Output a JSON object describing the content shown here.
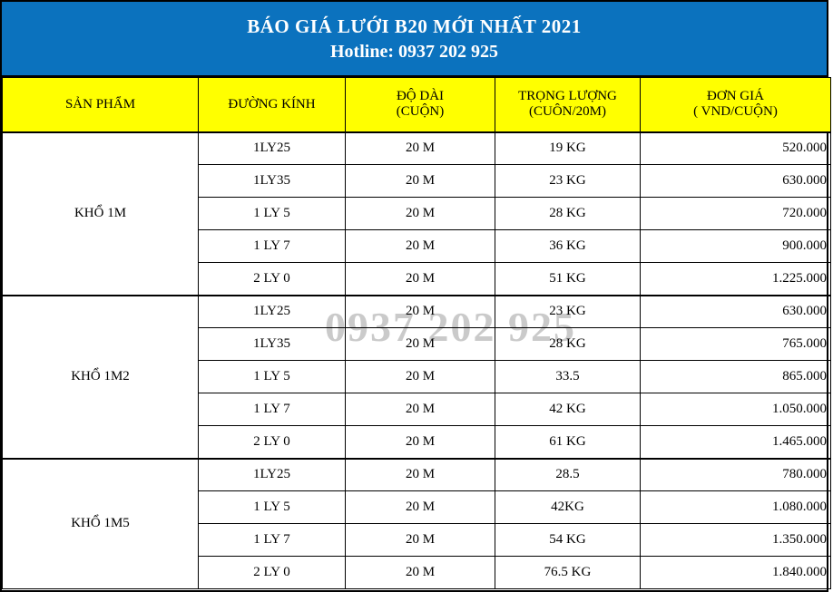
{
  "banner": {
    "title": "BÁO GIÁ LƯỚI B20 MỚI NHẤT 2021",
    "hotline": "Hotline: 0937 202 925"
  },
  "watermark": {
    "text": "0937 202 925"
  },
  "colors": {
    "banner_background": "#0b72be",
    "header_background": "#ffff00",
    "border": "#000000",
    "banner_text": "#ffffff",
    "watermark_text": "#b5b5b5"
  },
  "table": {
    "columns": [
      {
        "label": "SẢN PHẨM",
        "sub": ""
      },
      {
        "label": "ĐƯỜNG KÍNH",
        "sub": ""
      },
      {
        "label": "ĐỘ DÀI",
        "sub": "(CUỘN)"
      },
      {
        "label": "TRỌNG LƯỢNG",
        "sub": "(CUÔN/20M)"
      },
      {
        "label": "ĐƠN GIÁ",
        "sub": "( VND/CUỘN)"
      }
    ],
    "groups": [
      {
        "product": "KHỔ 1M",
        "rows": [
          {
            "diameter": "1LY25",
            "length": "20 M",
            "weight": "19 KG",
            "price": "520.000"
          },
          {
            "diameter": "1LY35",
            "length": "20 M",
            "weight": "23 KG",
            "price": "630.000"
          },
          {
            "diameter": "1 LY 5",
            "length": "20 M",
            "weight": "28 KG",
            "price": "720.000"
          },
          {
            "diameter": "1 LY 7",
            "length": "20 M",
            "weight": "36 KG",
            "price": "900.000"
          },
          {
            "diameter": "2 LY 0",
            "length": "20 M",
            "weight": "51 KG",
            "price": "1.225.000"
          }
        ]
      },
      {
        "product": "KHỔ 1M2",
        "rows": [
          {
            "diameter": "1LY25",
            "length": "20 M",
            "weight": "23 KG",
            "price": "630.000"
          },
          {
            "diameter": "1LY35",
            "length": "20 M",
            "weight": "28 KG",
            "price": "765.000"
          },
          {
            "diameter": "1 LY 5",
            "length": "20 M",
            "weight": "33.5",
            "price": "865.000"
          },
          {
            "diameter": "1 LY 7",
            "length": "20 M",
            "weight": "42 KG",
            "price": "1.050.000"
          },
          {
            "diameter": "2 LY 0",
            "length": "20 M",
            "weight": "61 KG",
            "price": "1.465.000"
          }
        ]
      },
      {
        "product": "KHỔ 1M5",
        "rows": [
          {
            "diameter": "1LY25",
            "length": "20 M",
            "weight": "28.5",
            "price": "780.000"
          },
          {
            "diameter": "1 LY 5",
            "length": "20 M",
            "weight": "42KG",
            "price": "1.080.000"
          },
          {
            "diameter": "1 LY 7",
            "length": "20 M",
            "weight": "54 KG",
            "price": "1.350.000"
          },
          {
            "diameter": "2 LY 0",
            "length": "20 M",
            "weight": "76.5 KG",
            "price": "1.840.000"
          }
        ]
      }
    ]
  }
}
